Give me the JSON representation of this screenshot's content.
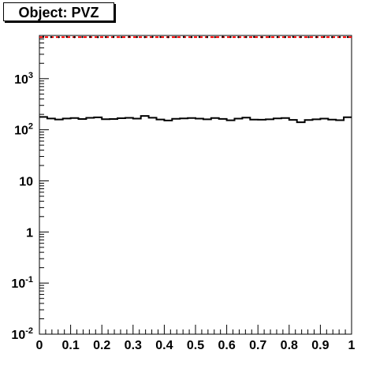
{
  "chart_data": {
    "type": "line",
    "title": "Object: PVZ",
    "xlabel": "",
    "ylabel": "",
    "xlim": [
      0,
      1
    ],
    "ylog": true,
    "ylim": [
      0.01,
      7000
    ],
    "grid": false,
    "x_ticks": [
      {
        "v": 0,
        "label": "0"
      },
      {
        "v": 0.1,
        "label": "0.1"
      },
      {
        "v": 0.2,
        "label": "0.2"
      },
      {
        "v": 0.3,
        "label": "0.3"
      },
      {
        "v": 0.4,
        "label": "0.4"
      },
      {
        "v": 0.5,
        "label": "0.5"
      },
      {
        "v": 0.6,
        "label": "0.6"
      },
      {
        "v": 0.7,
        "label": "0.7"
      },
      {
        "v": 0.8,
        "label": "0.8"
      },
      {
        "v": 0.9,
        "label": "0.9"
      },
      {
        "v": 1,
        "label": "1"
      }
    ],
    "y_ticks": [
      {
        "v": 0.01,
        "base": "10",
        "exp": "-2"
      },
      {
        "v": 0.1,
        "base": "10",
        "exp": "-1"
      },
      {
        "v": 1,
        "base": "1",
        "exp": ""
      },
      {
        "v": 10,
        "base": "10",
        "exp": ""
      },
      {
        "v": 100,
        "base": "10",
        "exp": "2"
      },
      {
        "v": 1000,
        "base": "10",
        "exp": "3"
      }
    ],
    "series": [
      {
        "style": "histogram",
        "color": "#000000",
        "bin_edges": [
          0,
          0.025,
          0.05,
          0.075,
          0.1,
          0.125,
          0.15,
          0.175,
          0.2,
          0.225,
          0.25,
          0.275,
          0.3,
          0.325,
          0.35,
          0.375,
          0.4,
          0.425,
          0.45,
          0.475,
          0.5,
          0.525,
          0.55,
          0.575,
          0.6,
          0.625,
          0.65,
          0.675,
          0.7,
          0.725,
          0.75,
          0.775,
          0.8,
          0.825,
          0.85,
          0.875,
          0.9,
          0.925,
          0.95,
          0.975,
          1.0
        ],
        "values": [
          178,
          166,
          159,
          166,
          170,
          162,
          171,
          175,
          161,
          162,
          168,
          171,
          165,
          186,
          172,
          159,
          152,
          164,
          167,
          170,
          165,
          160,
          170,
          163,
          153,
          165,
          173,
          158,
          157,
          160,
          167,
          170,
          156,
          140,
          155,
          160,
          165,
          158,
          154,
          176
        ]
      },
      {
        "style": "dashed",
        "color": "#ff0000",
        "x": [
          0,
          1
        ],
        "values": [
          6500,
          6500
        ]
      },
      {
        "style": "markers",
        "color": "#000000",
        "values": [
          6550,
          6500,
          6480,
          6560,
          6490,
          6510,
          6530,
          6470,
          6500,
          6520,
          6480,
          6560,
          6500,
          6490,
          6540,
          6510,
          6470,
          6500,
          6530,
          6490,
          6520,
          6500,
          6480,
          6550,
          6510,
          6490,
          6500,
          6530,
          6470,
          6520,
          6500,
          6490,
          6540,
          6510,
          6480,
          6500,
          6530,
          6490,
          6510,
          6500
        ]
      }
    ]
  }
}
